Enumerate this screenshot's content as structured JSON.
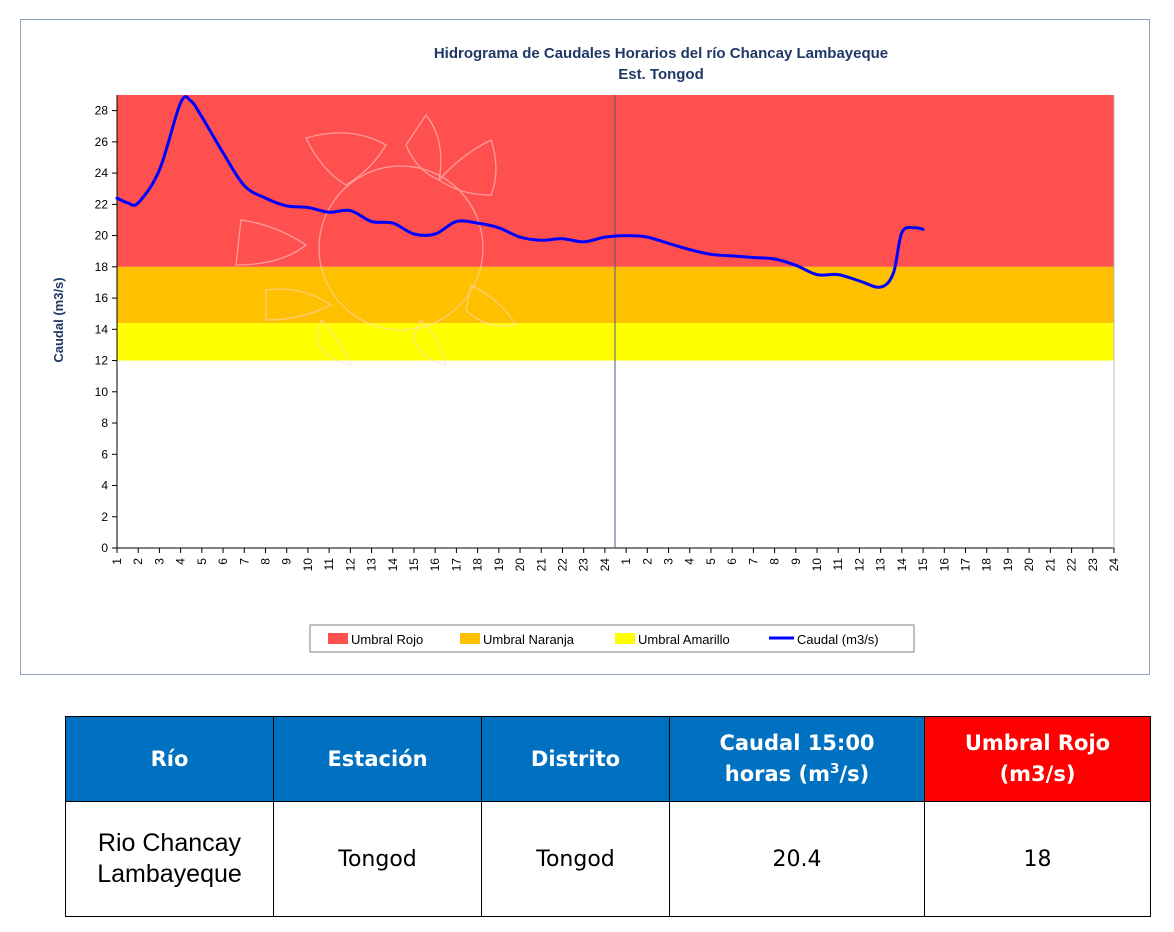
{
  "chart_data": {
    "type": "line",
    "title": [
      "Hidrograma de Caudales Horarios del río Chancay Lambayeque",
      "Est. Tongod"
    ],
    "xlabel": "",
    "ylabel": "Caudal  (m3/s)",
    "ylim": [
      0,
      29
    ],
    "yticks": [
      0,
      2,
      4,
      6,
      8,
      10,
      12,
      14,
      16,
      18,
      20,
      22,
      24,
      26,
      28
    ],
    "x_tick_labels": [
      "1",
      "2",
      "3",
      "4",
      "5",
      "6",
      "7",
      "8",
      "9",
      "10",
      "11",
      "12",
      "13",
      "14",
      "15",
      "16",
      "17",
      "18",
      "19",
      "20",
      "21",
      "22",
      "23",
      "24",
      "1",
      "2",
      "3",
      "4",
      "5",
      "6",
      "7",
      "8",
      "9",
      "10",
      "11",
      "12",
      "13",
      "14",
      "15",
      "16",
      "17",
      "18",
      "19",
      "20",
      "21",
      "22",
      "23",
      "24"
    ],
    "grid": false,
    "legend_position": "bottom",
    "bands": [
      {
        "name": "Umbral Rojo",
        "from": 18,
        "to": 29,
        "color": "#ff5050"
      },
      {
        "name": "Umbral Naranja",
        "from": 14.4,
        "to": 18,
        "color": "#ffc000"
      },
      {
        "name": "Umbral Amarillo",
        "from": 12,
        "to": 14.4,
        "color": "#ffff00"
      }
    ],
    "series": [
      {
        "name": "Caudal (m3/s)",
        "color": "#0000ff",
        "x": [
          1,
          1.5,
          2,
          3,
          4,
          4.5,
          5,
          6,
          7,
          8,
          9,
          10,
          11,
          12,
          13,
          14,
          15,
          16,
          17,
          18,
          19,
          20,
          21,
          22,
          23,
          24,
          25,
          26,
          27,
          28,
          29,
          30,
          31,
          32,
          33,
          34,
          35,
          36,
          37,
          37.6,
          38,
          38.6,
          39
        ],
        "values": [
          22.4,
          22.1,
          22.1,
          24.2,
          28.5,
          28.6,
          27.6,
          25.3,
          23.2,
          22.4,
          21.9,
          21.8,
          21.5,
          21.6,
          20.9,
          20.8,
          20.1,
          20.1,
          20.9,
          20.8,
          20.5,
          19.9,
          19.7,
          19.8,
          19.6,
          19.9,
          20.0,
          19.9,
          19.5,
          19.1,
          18.8,
          18.7,
          18.6,
          18.5,
          18.1,
          17.5,
          17.5,
          17.1,
          16.7,
          17.6,
          20.2,
          20.5,
          20.4
        ]
      }
    ]
  },
  "legend": [
    {
      "label": "Umbral Rojo",
      "color": "#ff5050",
      "kind": "box"
    },
    {
      "label": "Umbral Naranja",
      "color": "#ffc000",
      "kind": "box"
    },
    {
      "label": "Umbral Amarillo",
      "color": "#ffff00",
      "kind": "box"
    },
    {
      "label": "Caudal (m3/s)",
      "color": "#0000ff",
      "kind": "line"
    }
  ],
  "table": {
    "headers": {
      "rio": "Río",
      "estacion": "Estación",
      "distrito": "Distrito",
      "caudal_line1": "Caudal 15:00",
      "caudal_line2_pre": "horas (m",
      "caudal_line2_sup": "3",
      "caudal_line2_post": "/s)",
      "umbral_line1": "Umbral Rojo",
      "umbral_line2": "(m3/s)"
    },
    "row": {
      "rio_line1": "Rio Chancay",
      "rio_line2": "Lambayeque",
      "estacion": "Tongod",
      "distrito": "Tongod",
      "caudal": "20.4",
      "umbral": "18"
    }
  }
}
